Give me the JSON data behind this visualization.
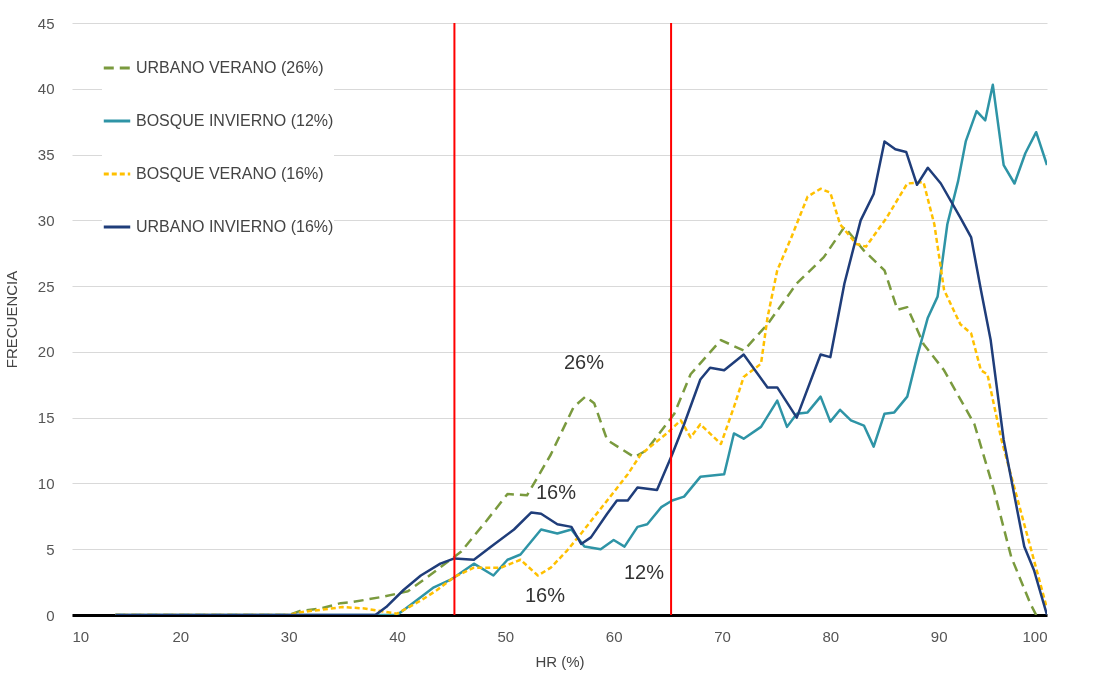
{
  "chart_data": {
    "type": "line",
    "xlabel": "HR (%)",
    "ylabel": "FRECUENCIA",
    "xlim": [
      10,
      100
    ],
    "xticks": [
      10,
      20,
      30,
      40,
      50,
      60,
      70,
      80,
      90,
      100
    ],
    "ylim": [
      0,
      45
    ],
    "yticks": [
      0,
      5,
      10,
      15,
      20,
      25,
      30,
      35,
      40,
      45
    ],
    "grid": "y",
    "legend": "top left",
    "series": [
      {
        "name": "URBANO VERANO (26%)",
        "color": "#7a9a3e",
        "line_style": "dashed",
        "x": [
          14,
          30,
          31,
          33,
          34.8,
          36,
          38.8,
          41,
          43,
          45.9,
          48.3,
          50.2,
          52,
          54.2,
          56.3,
          57.4,
          58.2,
          59.4,
          61.9,
          63,
          65.6,
          67.1,
          69.9,
          72,
          74.2,
          76.9,
          79.4,
          81.3,
          83.1,
          85,
          86.2,
          87.1,
          88.6,
          90.5,
          93.3,
          95.1,
          96.7,
          98.5,
          99
        ],
        "values": [
          0,
          0,
          0.3,
          0.5,
          0.9,
          1,
          1.4,
          1.8,
          3,
          4.8,
          7.2,
          9.2,
          9.1,
          12.2,
          15.8,
          16.6,
          16.1,
          13.3,
          12,
          12.5,
          15.3,
          18.3,
          20.9,
          20.1,
          22.1,
          25.2,
          27.2,
          29.5,
          27.7,
          26.2,
          23.2,
          23.4,
          20.6,
          18.6,
          14.5,
          9.5,
          4.4,
          0.8,
          0
        ]
      },
      {
        "name": "BOSQUE INVIERNO (12%)",
        "color": "#2e94a6",
        "line_style": "solid",
        "x": [
          14,
          40,
          41.3,
          43.4,
          45,
          47.1,
          48.9,
          50.2,
          51.4,
          53.3,
          54.8,
          56.1,
          57.3,
          58.8,
          60,
          61,
          62.2,
          63.1,
          64.4,
          65.4,
          66.5,
          68,
          70.2,
          71.1,
          72,
          73.6,
          75.1,
          76,
          76.9,
          77.9,
          79.1,
          80,
          80.9,
          81.9,
          83.1,
          84,
          85,
          85.9,
          87.1,
          88,
          89,
          89.9,
          90.8,
          91.8,
          92.5,
          93.5,
          94.3,
          95,
          96,
          97,
          98,
          99,
          100
        ],
        "values": [
          0,
          0,
          0.8,
          2.1,
          2.7,
          3.9,
          3,
          4.2,
          4.6,
          6.5,
          6.2,
          6.5,
          5.2,
          5,
          5.7,
          5.2,
          6.7,
          6.9,
          8.2,
          8.7,
          9,
          10.5,
          10.7,
          13.8,
          13.4,
          14.3,
          16.3,
          14.3,
          15.3,
          15.4,
          16.6,
          14.7,
          15.6,
          14.8,
          14.4,
          12.8,
          15.3,
          15.4,
          16.6,
          19.6,
          22.6,
          24.2,
          29.7,
          33,
          36,
          38.3,
          37.6,
          40.3,
          34.2,
          32.8,
          35.1,
          36.7,
          34.2
        ]
      },
      {
        "name": "BOSQUE VERANO (16%)",
        "color": "#ffc000",
        "line_style": "dotted",
        "x": [
          14,
          30,
          31,
          33,
          35,
          37,
          38.5,
          40,
          42.2,
          43.7,
          45.3,
          47.1,
          49.6,
          51.4,
          53,
          54.2,
          55.7,
          57,
          59.4,
          61.3,
          62.5,
          64.9,
          66.2,
          67.1,
          68,
          69.9,
          71.1,
          72,
          73.6,
          74.2,
          75.1,
          76.4,
          77.9,
          79.1,
          80,
          80.9,
          82.4,
          83.3,
          85.2,
          87.1,
          88.6,
          89.6,
          90.5,
          92,
          93,
          93.9,
          94.5,
          95.8,
          97.9,
          100
        ],
        "values": [
          0,
          0,
          0.2,
          0.4,
          0.6,
          0.5,
          0.3,
          0.1,
          1.1,
          1.9,
          2.9,
          3.6,
          3.6,
          4.2,
          3,
          3.6,
          4.9,
          6.2,
          8.7,
          10.7,
          12.2,
          13.8,
          14.8,
          13.5,
          14.5,
          13,
          15.8,
          18.1,
          19.1,
          22.6,
          26.2,
          28.7,
          31.8,
          32.4,
          32.1,
          29.7,
          28.2,
          28,
          30.2,
          32.8,
          32.9,
          29.7,
          24.7,
          22.1,
          21.4,
          18.6,
          18.3,
          13.3,
          6.9,
          0.5
        ]
      },
      {
        "name": "URBANO INVIERNO (16%)",
        "color": "#1f3d7a",
        "line_style": "solid",
        "x": [
          14,
          38,
          39,
          40.6,
          42.2,
          44,
          45.3,
          47.1,
          48.7,
          50.8,
          52.4,
          53.3,
          54.8,
          56.1,
          57,
          57.9,
          59.4,
          60.3,
          61.3,
          62.2,
          64,
          65.4,
          66.5,
          68,
          68.9,
          70.2,
          72,
          74.2,
          75.1,
          76.9,
          79.1,
          80,
          81.3,
          82.8,
          84,
          85,
          86,
          87,
          88,
          89,
          90.2,
          92,
          93,
          93.9,
          94.8,
          96,
          97.9,
          98.8,
          100
        ],
        "values": [
          0,
          0,
          0.6,
          1.9,
          3,
          3.9,
          4.3,
          4.2,
          5.2,
          6.5,
          7.8,
          7.7,
          6.9,
          6.7,
          5.4,
          5.9,
          7.7,
          8.7,
          8.7,
          9.7,
          9.5,
          12.2,
          14.5,
          17.9,
          18.8,
          18.6,
          19.8,
          17.3,
          17.3,
          15,
          19.8,
          19.6,
          25.2,
          30,
          32,
          36,
          35.4,
          35.2,
          32.7,
          34,
          32.8,
          30.2,
          28.7,
          24.7,
          20.9,
          13.3,
          5.2,
          3.4,
          0
        ]
      }
    ],
    "ref_lines": [
      {
        "axis": "x",
        "value": 45.3,
        "color": "#ff0000"
      },
      {
        "axis": "x",
        "value": 65.3,
        "color": "#ff0000"
      }
    ],
    "annotations": [
      "26%",
      "16%",
      "16%",
      "12%"
    ]
  }
}
